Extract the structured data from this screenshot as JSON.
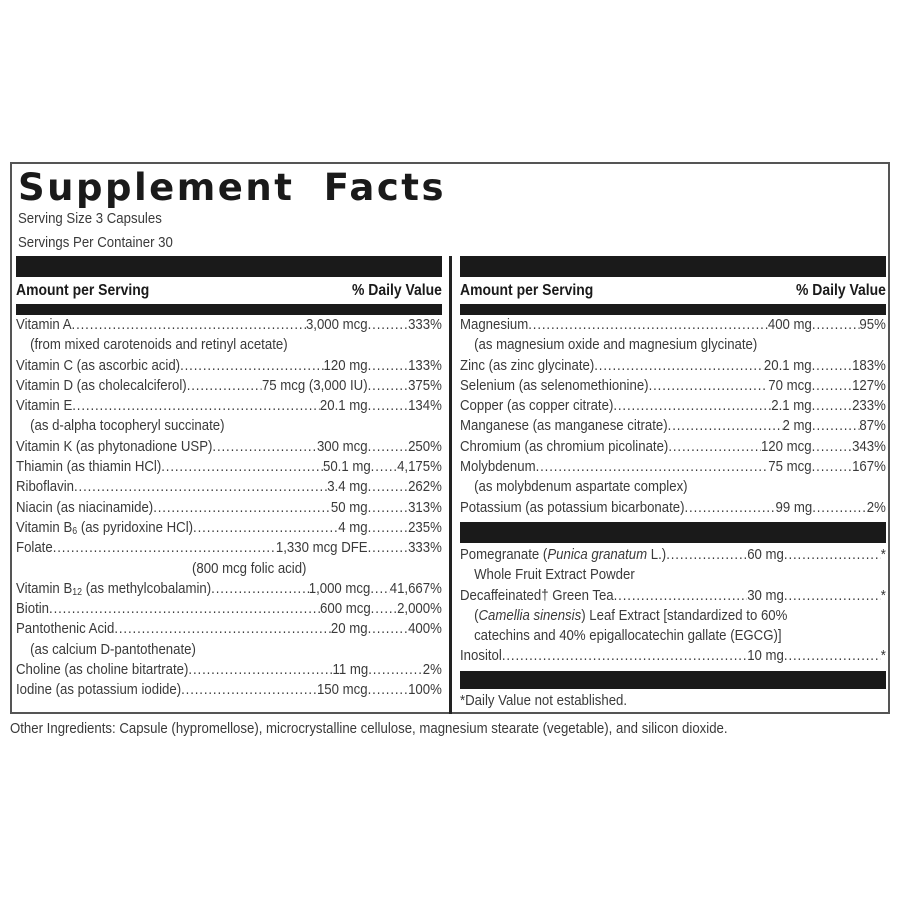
{
  "title": "Supplement Facts",
  "serving_size": "Serving Size 3 Capsules",
  "servings_per_container": "Servings Per Container 30",
  "header": {
    "amount_label": "Amount per Serving",
    "dv_label": "% Daily Value"
  },
  "left_rows": [
    {
      "name": "Vitamin A",
      "amount": "3,000 mcg",
      "dv": "333%"
    },
    {
      "sub": "(from mixed carotenoids and retinyl acetate)"
    },
    {
      "name": "Vitamin C (as ascorbic acid)",
      "amount": "120 mg",
      "dv": "133%"
    },
    {
      "name": "Vitamin D (as cholecalciferol)",
      "amount": "75 mcg (3,000 IU)",
      "dv": "375%"
    },
    {
      "name": "Vitamin E",
      "amount": "20.1 mg",
      "dv": "134%"
    },
    {
      "sub": "(as d-alpha tocopheryl succinate)"
    },
    {
      "name": "Vitamin K (as phytonadione USP)",
      "amount": "300 mcg",
      "dv": "250%"
    },
    {
      "name": "Thiamin (as thiamin HCl)",
      "amount": "50.1 mg",
      "dv": "4,175%"
    },
    {
      "name": "Riboflavin",
      "amount": "3.4 mg",
      "dv": "262%"
    },
    {
      "name": "Niacin (as niacinamide)",
      "amount": "50 mg",
      "dv": "313%"
    },
    {
      "name": "Vitamin B6 (as pyridoxine HCl)",
      "amount": "4 mg",
      "dv": "235%"
    },
    {
      "name": "Folate",
      "amount": "1,330 mcg DFE",
      "dv": "333%"
    },
    {
      "center": "(800 mcg folic acid)"
    },
    {
      "name": "Vitamin B12 (as methylcobalamin)",
      "amount": "1,000 mcg",
      "dv": "41,667%"
    },
    {
      "name": "Biotin",
      "amount": "600 mcg",
      "dv": "2,000%"
    },
    {
      "name": "Pantothenic Acid",
      "amount": "20 mg",
      "dv": "400%"
    },
    {
      "sub": "(as calcium D-pantothenate)"
    },
    {
      "name": "Choline (as choline bitartrate)",
      "amount": "11 mg",
      "dv": "2%"
    },
    {
      "name": "Iodine (as potassium iodide)",
      "amount": "150 mcg",
      "dv": "100%"
    }
  ],
  "right_rows": [
    {
      "name": "Magnesium",
      "amount": "400 mg",
      "dv": "95%"
    },
    {
      "sub": "(as magnesium oxide and magnesium glycinate)"
    },
    {
      "name": "Zinc (as zinc glycinate)",
      "amount": "20.1 mg",
      "dv": "183%"
    },
    {
      "name": "Selenium (as selenomethionine)",
      "amount": "70 mcg",
      "dv": "127%"
    },
    {
      "name": "Copper (as copper citrate)",
      "amount": "2.1 mg",
      "dv": "233%"
    },
    {
      "name": "Manganese (as manganese citrate)",
      "amount": "2 mg",
      "dv": "87%"
    },
    {
      "name": "Chromium (as chromium picolinate)",
      "amount": "120 mcg",
      "dv": "343%"
    },
    {
      "name": "Molybdenum",
      "amount": "75 mcg",
      "dv": "167%"
    },
    {
      "sub": "(as molybdenum aspartate complex)"
    },
    {
      "name": "Potassium (as potassium bicarbonate)",
      "amount": "99 mg",
      "dv": "2%"
    }
  ],
  "right_rows_2": [
    {
      "name_pre": "Pomegranate (",
      "name_italic": "Punica granatum",
      "name_post": " L.)",
      "amount": "60 mg",
      "dv": "*"
    },
    {
      "sub": "Whole Fruit Extract Powder"
    },
    {
      "name": "Decaffeinated† Green Tea",
      "amount": "30 mg",
      "dv": "*"
    },
    {
      "sub_pre": "(",
      "sub_italic": "Camellia sinensis",
      "sub_post": ") Leaf Extract [standardized to 60%"
    },
    {
      "sub": "catechins and 40% epigallocatechin gallate (EGCG)]"
    },
    {
      "name": "Inositol",
      "amount": "10 mg",
      "dv": "*"
    }
  ],
  "footnote": "*Daily Value not established.",
  "other_ingredients": "Other Ingredients: Capsule (hypromellose), microcrystalline cellulose, magnesium stearate (vegetable), and silicon dioxide."
}
